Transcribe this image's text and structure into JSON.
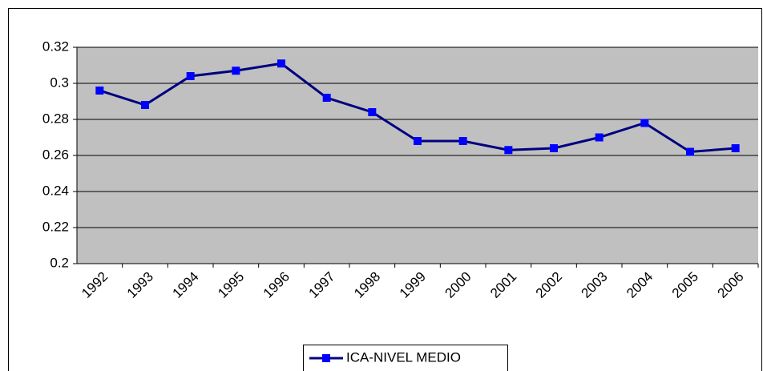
{
  "chart_data": {
    "type": "line",
    "categories": [
      "1992",
      "1993",
      "1994",
      "1995",
      "1996",
      "1997",
      "1998",
      "1999",
      "2000",
      "2001",
      "2002",
      "2003",
      "2004",
      "2005",
      "2006"
    ],
    "series": [
      {
        "name": "ICA-NIVEL MEDIO",
        "color": "#000080",
        "marker_color": "#0000ff",
        "values": [
          0.296,
          0.288,
          0.304,
          0.307,
          0.311,
          0.292,
          0.284,
          0.268,
          0.268,
          0.263,
          0.264,
          0.27,
          0.278,
          0.262,
          0.264
        ]
      }
    ],
    "ylim": [
      0.2,
      0.32
    ],
    "yticks": [
      0.2,
      0.22,
      0.24,
      0.26,
      0.28,
      0.3,
      0.32
    ],
    "grid": true,
    "legend": "bottom"
  }
}
